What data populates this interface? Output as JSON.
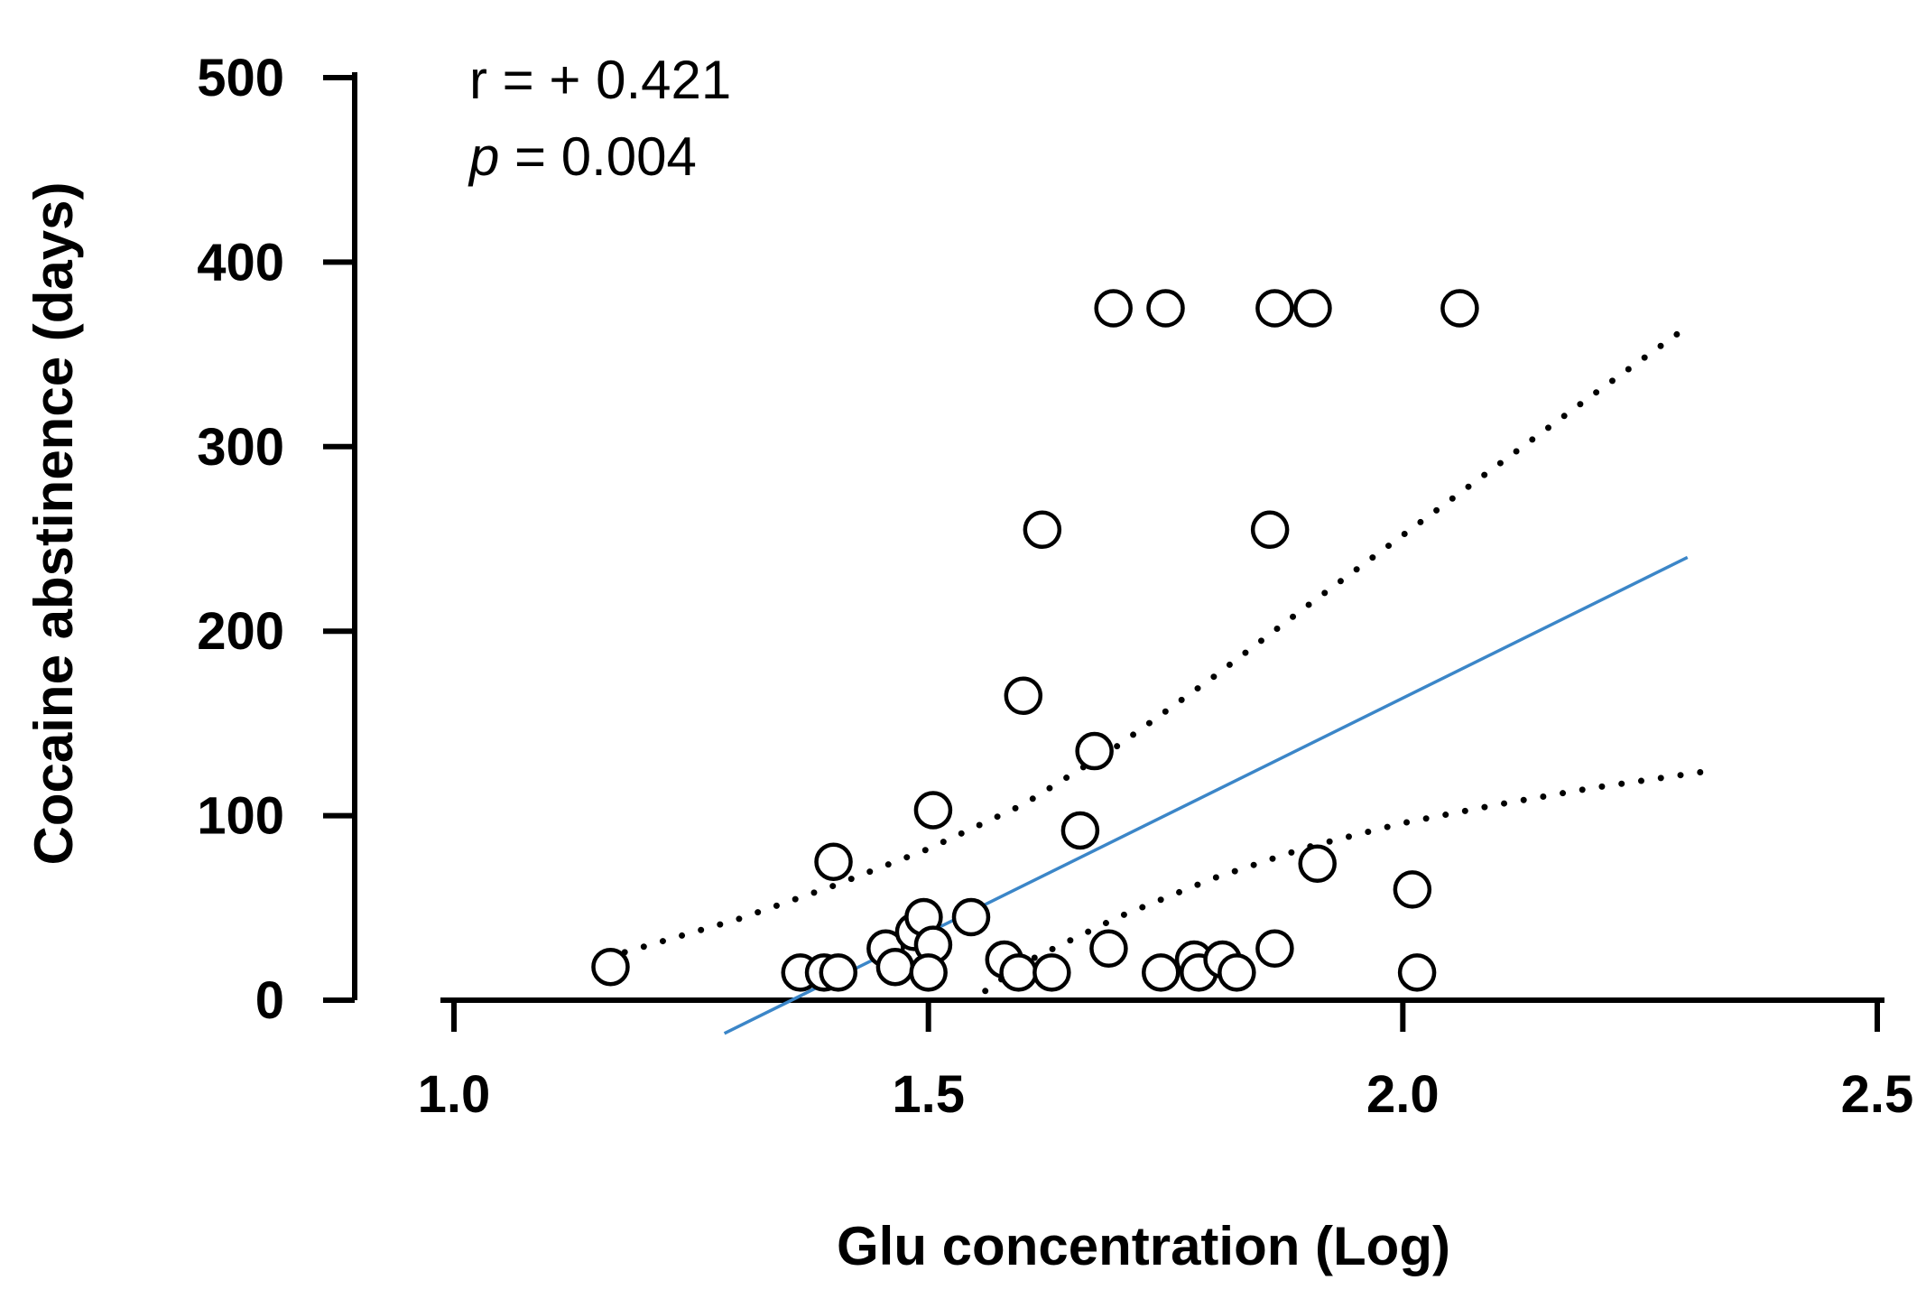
{
  "chart_data": {
    "type": "scatter",
    "title": "",
    "xlabel": "Glu concentration (Log)",
    "ylabel": "Cocaine abstinence (days)",
    "xlim": [
      1.0,
      2.5
    ],
    "ylim": [
      0,
      500
    ],
    "xticks": [
      "1.0",
      "1.5",
      "2.0",
      "2.5"
    ],
    "yticks": [
      "0",
      "100",
      "200",
      "300",
      "400",
      "500"
    ],
    "annotations": {
      "r_text": "r = + 0.421",
      "p_symbol": "p",
      "p_value": " = 0.004"
    },
    "points": [
      {
        "x": 1.165,
        "y": 18
      },
      {
        "x": 1.365,
        "y": 15
      },
      {
        "x": 1.4,
        "y": 75
      },
      {
        "x": 1.39,
        "y": 15
      },
      {
        "x": 1.405,
        "y": 15
      },
      {
        "x": 1.455,
        "y": 28
      },
      {
        "x": 1.465,
        "y": 18
      },
      {
        "x": 1.485,
        "y": 37
      },
      {
        "x": 1.495,
        "y": 45
      },
      {
        "x": 1.505,
        "y": 30
      },
      {
        "x": 1.5,
        "y": 15
      },
      {
        "x": 1.505,
        "y": 103
      },
      {
        "x": 1.545,
        "y": 45
      },
      {
        "x": 1.58,
        "y": 22
      },
      {
        "x": 1.595,
        "y": 15
      },
      {
        "x": 1.6,
        "y": 165
      },
      {
        "x": 1.62,
        "y": 255
      },
      {
        "x": 1.63,
        "y": 15
      },
      {
        "x": 1.66,
        "y": 92
      },
      {
        "x": 1.675,
        "y": 135
      },
      {
        "x": 1.69,
        "y": 28
      },
      {
        "x": 1.695,
        "y": 375
      },
      {
        "x": 1.745,
        "y": 15
      },
      {
        "x": 1.75,
        "y": 375
      },
      {
        "x": 1.78,
        "y": 22
      },
      {
        "x": 1.785,
        "y": 15
      },
      {
        "x": 1.81,
        "y": 22
      },
      {
        "x": 1.825,
        "y": 15
      },
      {
        "x": 1.86,
        "y": 255
      },
      {
        "x": 1.865,
        "y": 28
      },
      {
        "x": 1.865,
        "y": 375
      },
      {
        "x": 1.905,
        "y": 375
      },
      {
        "x": 1.91,
        "y": 74
      },
      {
        "x": 2.01,
        "y": 60
      },
      {
        "x": 2.015,
        "y": 15
      },
      {
        "x": 2.06,
        "y": 375
      }
    ],
    "regression": {
      "x": [
        1.285,
        2.3
      ],
      "y": [
        -18,
        240
      ],
      "color": "#3b86c8"
    },
    "ci_upper": {
      "x": [
        1.18,
        1.3,
        1.4,
        1.5,
        1.6,
        1.7,
        1.8,
        1.9,
        2.0,
        2.1,
        2.2,
        2.3
      ],
      "y": [
        26,
        44,
        62,
        82,
        106,
        138,
        175,
        214,
        252,
        290,
        328,
        365
      ]
    },
    "ci_lower": {
      "x": [
        1.56,
        1.6,
        1.7,
        1.8,
        1.9,
        2.0,
        2.1,
        2.2,
        2.32
      ],
      "y": [
        5,
        20,
        45,
        66,
        83,
        96,
        106,
        115,
        124
      ]
    }
  }
}
